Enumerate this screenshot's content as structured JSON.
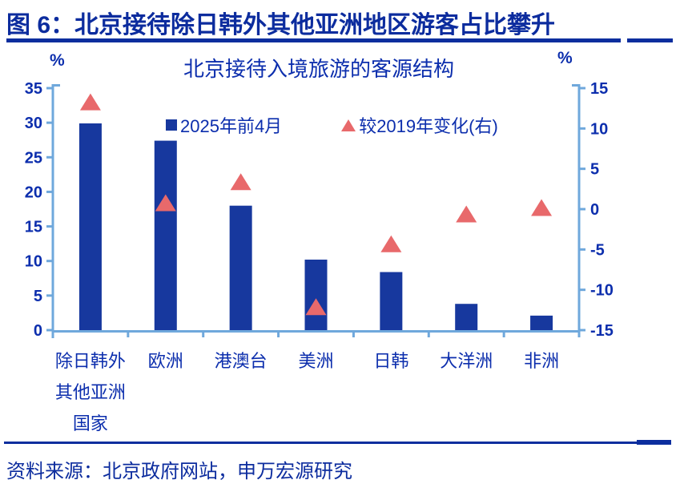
{
  "header": {
    "title": "图 6：北京接待除日韩外其他亚洲地区游客占比攀升"
  },
  "footer": {
    "source": "资料来源：北京政府网站，申万宏源研究"
  },
  "colors": {
    "ink_navy": "#0C2EAD",
    "bar_fill": "#17389E",
    "triangle_fill": "#E8696B",
    "axis_line": "#6FA8DC",
    "rule_navy": "#0C2E9E"
  },
  "chart_data": {
    "type": "bar",
    "title": "北京接待入境旅游的客源结构",
    "categories": [
      [
        "除日韩外",
        "其他亚洲",
        "国家"
      ],
      [
        "欧洲"
      ],
      [
        "港澳台"
      ],
      [
        "美洲"
      ],
      [
        "日韩"
      ],
      [
        "大洋洲"
      ],
      [
        "非洲"
      ]
    ],
    "series": [
      {
        "name": "2025年前4月",
        "marker": "bar",
        "axis": "left",
        "values": [
          29.9,
          27.4,
          18.0,
          10.2,
          8.4,
          3.8,
          2.1
        ]
      },
      {
        "name": "较2019年变化(右)",
        "marker": "triangle",
        "axis": "right",
        "values": [
          13.3,
          0.8,
          3.4,
          -12.1,
          -4.3,
          -0.6,
          0.2
        ]
      }
    ],
    "left_axis": {
      "unit": "%",
      "min": 0,
      "max": 35,
      "step": 5,
      "ticks": [
        0,
        5,
        10,
        15,
        20,
        25,
        30,
        35
      ]
    },
    "right_axis": {
      "unit": "%",
      "min": -15,
      "max": 15,
      "step": 5,
      "ticks": [
        -15,
        -10,
        -5,
        0,
        5,
        10,
        15
      ]
    },
    "legend_position": "top-inside",
    "grid": false
  }
}
